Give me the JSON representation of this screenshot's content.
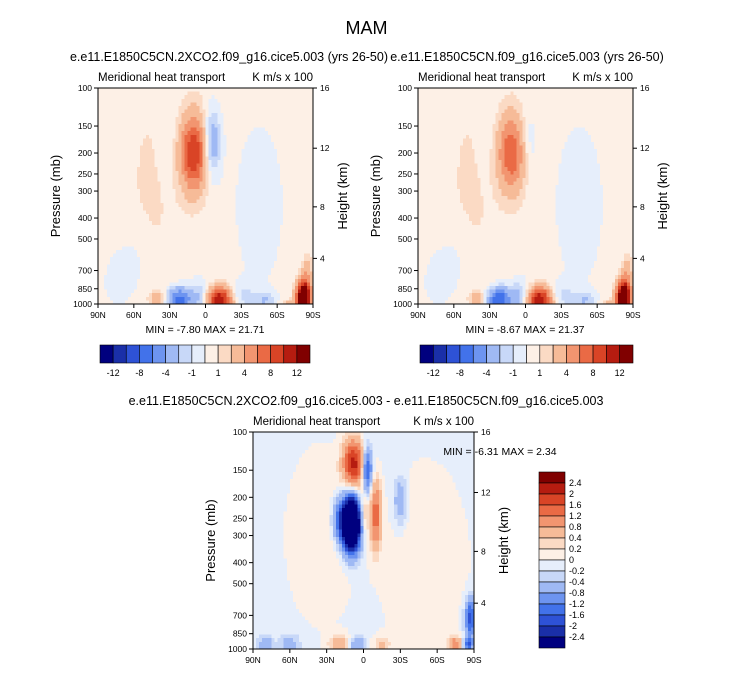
{
  "main_title": "MAM",
  "colors": {
    "c1": [
      "#00007f",
      "#1a2fa8",
      "#2e52d6",
      "#4272ea",
      "#6d94f0",
      "#9fb9f4",
      "#c8d8f8",
      "#e6eefb",
      "#fdf0e6",
      "#fbdac4",
      "#f6bb98",
      "#f29570",
      "#ea6a45",
      "#d94426",
      "#b61c10",
      "#800000"
    ],
    "c2": [
      "#00007f",
      "#1a2fa8",
      "#2e52d6",
      "#4272ea",
      "#6d94f0",
      "#9fb9f4",
      "#c8d8f8",
      "#e6eefb",
      "#fdf0e6",
      "#fbdac4",
      "#f6bb98",
      "#f29570",
      "#ea6a45",
      "#d94426",
      "#b61c10",
      "#800000"
    ],
    "dc": [
      "#00007f",
      "#1a2fa8",
      "#2e52d6",
      "#4272ea",
      "#6d94f0",
      "#9fb9f4",
      "#c8d8f8",
      "#e6eefb",
      "#fdf0e6",
      "#fbdac4",
      "#f6bb98",
      "#f29570",
      "#ea6a45",
      "#d94426",
      "#b61c10",
      "#800000"
    ]
  },
  "chart_data": [
    {
      "id": "p1",
      "type": "heatmap",
      "title": "e.e11.E1850C5CN.2XCO2.f09_g16.cice5.003 (yrs 26-50)",
      "left_label": "Meridional heat transport",
      "right_label": "K m/s x 100",
      "ylabel": "Pressure (mb)",
      "ylabel_right": "Height (km)",
      "yticks": [
        100,
        150,
        200,
        250,
        300,
        400,
        500,
        700,
        850,
        1000
      ],
      "yticks_right": [
        16,
        12,
        8,
        4
      ],
      "xticks": [
        "90N",
        "60N",
        "30N",
        "0",
        "30S",
        "60S",
        "90S"
      ],
      "xlim": [
        90,
        -90
      ],
      "ylim": [
        100,
        1000
      ],
      "min_label": "MIN =",
      "min": "-7.80",
      "max_label": "MAX =",
      "max": "21.71",
      "levels": [
        -12,
        -10,
        -8,
        -6,
        -4,
        -2,
        -1,
        0,
        1,
        2,
        4,
        6,
        8,
        10,
        12
      ],
      "colorbar_labels": [
        "-12",
        "-8",
        "-4",
        "-1",
        "1",
        "4",
        "8",
        "12"
      ],
      "background": 0.5,
      "blobs": [
        {
          "lat": 10,
          "p": 200,
          "val": 9.5,
          "wl": 8,
          "wp": 55
        },
        {
          "lat": -5,
          "p": 180,
          "val": -4.5,
          "wl": 5,
          "wp": 45
        },
        {
          "lat": 28,
          "p": 180,
          "val": -0.8,
          "wl": 8,
          "wp": 60
        },
        {
          "lat": 45,
          "p": 300,
          "val": 0.7,
          "wl": 15,
          "wp": 250
        },
        {
          "lat": -45,
          "p": 350,
          "val": -0.8,
          "wl": 20,
          "wp": 300
        },
        {
          "lat": 22,
          "p": 960,
          "val": -7.5,
          "wl": 7,
          "wp": 90
        },
        {
          "lat": 5,
          "p": 930,
          "val": -2.5,
          "wl": 6,
          "wp": 120
        },
        {
          "lat": -12,
          "p": 960,
          "val": 12,
          "wl": 7,
          "wp": 90
        },
        {
          "lat": -30,
          "p": 920,
          "val": -1.8,
          "wl": 8,
          "wp": 90
        },
        {
          "lat": 40,
          "p": 950,
          "val": 2.5,
          "wl": 5,
          "wp": 60
        },
        {
          "lat": -50,
          "p": 960,
          "val": -2.2,
          "wl": 6,
          "wp": 60
        },
        {
          "lat": -82,
          "p": 940,
          "val": 18,
          "wl": 4,
          "wp": 110
        },
        {
          "lat": -85,
          "p": 760,
          "val": 3,
          "wl": 3,
          "wp": 120
        },
        {
          "lat": -70,
          "p": 990,
          "val": 2,
          "wl": 4,
          "wp": 30
        },
        {
          "lat": 60,
          "p": 650,
          "val": -0.9,
          "wl": 12,
          "wp": 200
        },
        {
          "lat": 75,
          "p": 800,
          "val": -0.8,
          "wl": 8,
          "wp": 150
        }
      ]
    },
    {
      "id": "p2",
      "type": "heatmap",
      "title": "e.e11.E1850C5CN.f09_g16.cice5.003 (yrs 26-50)",
      "left_label": "Meridional heat transport",
      "right_label": "K m/s x 100",
      "ylabel": "Pressure (mb)",
      "ylabel_right": "Height (km)",
      "yticks": [
        100,
        150,
        200,
        250,
        300,
        400,
        500,
        700,
        850,
        1000
      ],
      "yticks_right": [
        16,
        12,
        8,
        4
      ],
      "xticks": [
        "90N",
        "60N",
        "30N",
        "0",
        "30S",
        "60S",
        "90S"
      ],
      "xlim": [
        90,
        -90
      ],
      "ylim": [
        100,
        1000
      ],
      "min_label": "MIN =",
      "min": "-8.67",
      "max_label": "MAX =",
      "max": "21.37",
      "levels": [
        -12,
        -10,
        -8,
        -6,
        -4,
        -2,
        -1,
        0,
        1,
        2,
        4,
        6,
        8,
        10,
        12
      ],
      "colorbar_labels": [
        "-12",
        "-8",
        "-4",
        "-1",
        "1",
        "4",
        "8",
        "12"
      ],
      "background": 0.5,
      "blobs": [
        {
          "lat": 12,
          "p": 200,
          "val": 7.5,
          "wl": 8,
          "wp": 55
        },
        {
          "lat": -2,
          "p": 180,
          "val": -1.5,
          "wl": 5,
          "wp": 45
        },
        {
          "lat": 28,
          "p": 180,
          "val": -0.7,
          "wl": 8,
          "wp": 60
        },
        {
          "lat": 45,
          "p": 300,
          "val": 0.7,
          "wl": 15,
          "wp": 250
        },
        {
          "lat": -45,
          "p": 350,
          "val": -0.8,
          "wl": 20,
          "wp": 300
        },
        {
          "lat": 22,
          "p": 960,
          "val": -8.5,
          "wl": 7,
          "wp": 90
        },
        {
          "lat": 5,
          "p": 930,
          "val": -2.8,
          "wl": 6,
          "wp": 120
        },
        {
          "lat": -12,
          "p": 960,
          "val": 12,
          "wl": 7,
          "wp": 90
        },
        {
          "lat": -30,
          "p": 920,
          "val": -1.8,
          "wl": 8,
          "wp": 90
        },
        {
          "lat": 40,
          "p": 950,
          "val": 2.5,
          "wl": 5,
          "wp": 60
        },
        {
          "lat": -50,
          "p": 960,
          "val": -2.2,
          "wl": 6,
          "wp": 60
        },
        {
          "lat": -82,
          "p": 940,
          "val": 18,
          "wl": 4,
          "wp": 110
        },
        {
          "lat": -85,
          "p": 760,
          "val": 3,
          "wl": 3,
          "wp": 120
        },
        {
          "lat": -70,
          "p": 990,
          "val": 2,
          "wl": 4,
          "wp": 30
        },
        {
          "lat": 60,
          "p": 650,
          "val": -0.9,
          "wl": 12,
          "wp": 200
        },
        {
          "lat": 75,
          "p": 800,
          "val": -0.8,
          "wl": 8,
          "wp": 150
        }
      ]
    },
    {
      "id": "dp",
      "type": "heatmap",
      "title": "e.e11.E1850C5CN.2XCO2.f09_g16.cice5.003 - e.e11.E1850C5CN.f09_g16.cice5.003",
      "left_label": "Meridional heat transport",
      "right_label": "K m/s x 100",
      "ylabel": "Pressure (mb)",
      "ylabel_right": "Height (km)",
      "yticks": [
        100,
        150,
        200,
        250,
        300,
        400,
        500,
        700,
        850,
        1000
      ],
      "yticks_right": [
        16,
        12,
        8,
        4
      ],
      "xticks": [
        "90N",
        "60N",
        "30N",
        "0",
        "30S",
        "60S",
        "90S"
      ],
      "xlim": [
        90,
        -90
      ],
      "ylim": [
        100,
        1000
      ],
      "min_label": "MIN =",
      "min": "-6.31",
      "max_label": "MAX =",
      "max": "2.34",
      "levels": [
        -2.4,
        -2,
        -1.6,
        -1.2,
        -0.8,
        -0.4,
        -0.2,
        0,
        0.2,
        0.4,
        0.8,
        1.2,
        1.6,
        2,
        2.4
      ],
      "colorbar_labels": [
        "2.4",
        "2",
        "1.6",
        "1.2",
        "0.8",
        "0.4",
        "0.2",
        "0",
        "-0.2",
        "-0.4",
        "-0.8",
        "-1.2",
        "-1.6",
        "-2",
        "-2.4"
      ],
      "background": -0.1,
      "blobs": [
        {
          "lat": 8,
          "p": 140,
          "val": 2.2,
          "wl": 6,
          "wp": 25
        },
        {
          "lat": -3,
          "p": 150,
          "val": -1.8,
          "wl": 3,
          "wp": 25
        },
        {
          "lat": 10,
          "p": 265,
          "val": -6.3,
          "wl": 5,
          "wp": 50
        },
        {
          "lat": 20,
          "p": 255,
          "val": -1.2,
          "wl": 4,
          "wp": 40
        },
        {
          "lat": -10,
          "p": 240,
          "val": 1.5,
          "wl": 3,
          "wp": 60
        },
        {
          "lat": 0,
          "p": 240,
          "val": 0.8,
          "wl": 3,
          "wp": 40
        },
        {
          "lat": -30,
          "p": 210,
          "val": -0.7,
          "wl": 4,
          "wp": 40
        },
        {
          "lat": 35,
          "p": 300,
          "val": 0.3,
          "wl": 20,
          "wp": 200
        },
        {
          "lat": -50,
          "p": 400,
          "val": 0.3,
          "wl": 25,
          "wp": 300
        },
        {
          "lat": 20,
          "p": 950,
          "val": 0.7,
          "wl": 6,
          "wp": 70
        },
        {
          "lat": 5,
          "p": 960,
          "val": -0.8,
          "wl": 4,
          "wp": 60
        },
        {
          "lat": -15,
          "p": 960,
          "val": 0.5,
          "wl": 5,
          "wp": 70
        },
        {
          "lat": 60,
          "p": 950,
          "val": -0.5,
          "wl": 6,
          "wp": 70
        },
        {
          "lat": 80,
          "p": 950,
          "val": -0.6,
          "wl": 4,
          "wp": 60
        },
        {
          "lat": -75,
          "p": 950,
          "val": 1.2,
          "wl": 4,
          "wp": 50
        },
        {
          "lat": -87,
          "p": 720,
          "val": -1.8,
          "wl": 3,
          "wp": 100
        },
        {
          "lat": -85,
          "p": 950,
          "val": -1.5,
          "wl": 3,
          "wp": 40
        }
      ]
    }
  ]
}
